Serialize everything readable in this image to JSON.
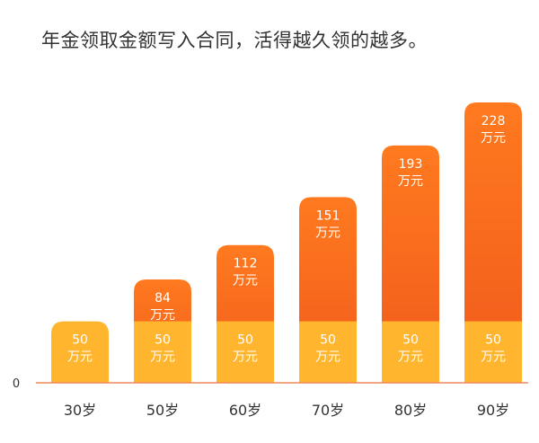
{
  "title": "年金领取金额写入合同，活得越久领的越多。",
  "chart_data": {
    "type": "bar",
    "title": "年金领取金额写入合同，活得越久领的越多。",
    "categories": [
      "30岁",
      "50岁",
      "60岁",
      "70岁",
      "80岁",
      "90岁"
    ],
    "base_value": 50,
    "values": [
      50,
      84,
      112,
      151,
      193,
      228
    ],
    "unit": "万元",
    "zero_label": "0",
    "ylim": [
      0,
      228
    ],
    "colors": {
      "base": "#FFB52E",
      "bar": "#FF7A1F",
      "bar_dark": "#F05A1C",
      "axis": "#F0885A",
      "label": "#FFFFFF",
      "tick": "#333333"
    }
  }
}
